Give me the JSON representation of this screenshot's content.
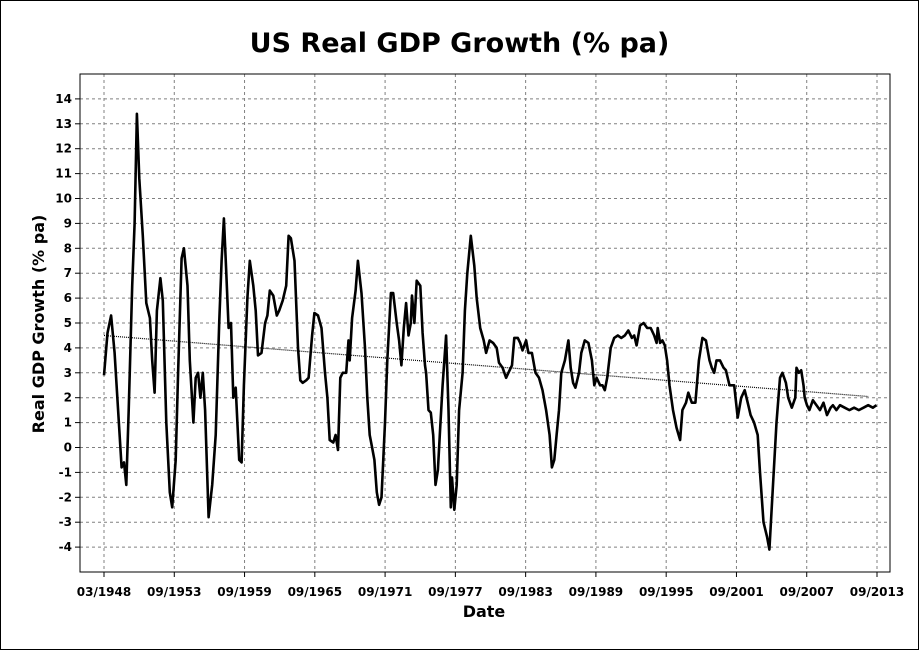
{
  "chart_data": {
    "type": "line",
    "title": "US Real GDP Growth (% pa)",
    "xlabel": "Date",
    "ylabel": "Real GDP Growth (% pa)",
    "ylim": [
      -5,
      15
    ],
    "xlim": [
      1948.0,
      2013.75
    ],
    "grid": true,
    "legend": "none",
    "x_tick_labels": [
      "03/1948",
      "09/1953",
      "09/1959",
      "09/1965",
      "09/1971",
      "09/1977",
      "09/1983",
      "09/1989",
      "09/1995",
      "09/2001",
      "09/2007",
      "09/2013"
    ],
    "y_tick_labels": [
      "-4",
      "-3",
      "-2",
      "-1",
      "0",
      "1",
      "2",
      "3",
      "4",
      "5",
      "6",
      "7",
      "8",
      "9",
      "10",
      "11",
      "12",
      "13",
      "14"
    ],
    "series": [
      {
        "role": "data",
        "color": "#000000",
        "points": [
          [
            1948.0,
            2.9
          ],
          [
            1948.3,
            4.6
          ],
          [
            1948.6,
            5.3
          ],
          [
            1948.9,
            3.8
          ],
          [
            1949.2,
            1.5
          ],
          [
            1949.5,
            -0.8
          ],
          [
            1949.7,
            -0.6
          ],
          [
            1949.9,
            -1.5
          ],
          [
            1950.1,
            1.5
          ],
          [
            1950.4,
            6.5
          ],
          [
            1950.6,
            9.0
          ],
          [
            1950.8,
            13.4
          ],
          [
            1951.0,
            10.8
          ],
          [
            1951.3,
            8.5
          ],
          [
            1951.6,
            5.8
          ],
          [
            1951.9,
            5.2
          ],
          [
            1952.1,
            3.5
          ],
          [
            1952.3,
            2.2
          ],
          [
            1952.5,
            5.5
          ],
          [
            1952.8,
            6.8
          ],
          [
            1953.0,
            5.9
          ],
          [
            1953.3,
            1.0
          ],
          [
            1953.6,
            -1.8
          ],
          [
            1953.8,
            -2.4
          ],
          [
            1954.1,
            -0.5
          ],
          [
            1954.3,
            3.0
          ],
          [
            1954.6,
            7.6
          ],
          [
            1954.8,
            8.0
          ],
          [
            1955.1,
            6.5
          ],
          [
            1955.3,
            3.5
          ],
          [
            1955.6,
            1.0
          ],
          [
            1955.8,
            2.8
          ],
          [
            1956.0,
            3.0
          ],
          [
            1956.2,
            2.0
          ],
          [
            1956.4,
            3.0
          ],
          [
            1956.6,
            1.5
          ],
          [
            1956.9,
            -2.8
          ],
          [
            1957.2,
            -1.5
          ],
          [
            1957.5,
            0.5
          ],
          [
            1957.8,
            5.0
          ],
          [
            1958.0,
            7.5
          ],
          [
            1958.2,
            9.2
          ],
          [
            1958.4,
            7.0
          ],
          [
            1958.6,
            4.8
          ],
          [
            1958.8,
            5.0
          ],
          [
            1959.0,
            2.0
          ],
          [
            1959.2,
            2.4
          ],
          [
            1959.5,
            -0.5
          ],
          [
            1959.7,
            -0.6
          ],
          [
            1959.9,
            2.5
          ],
          [
            1960.2,
            6.0
          ],
          [
            1960.4,
            7.5
          ],
          [
            1960.7,
            6.5
          ],
          [
            1960.9,
            5.5
          ],
          [
            1961.1,
            3.7
          ],
          [
            1961.4,
            3.8
          ],
          [
            1961.7,
            5.0
          ],
          [
            1961.9,
            5.3
          ],
          [
            1962.1,
            6.3
          ],
          [
            1962.4,
            6.1
          ],
          [
            1962.7,
            5.3
          ],
          [
            1962.9,
            5.5
          ],
          [
            1963.2,
            5.9
          ],
          [
            1963.5,
            6.5
          ],
          [
            1963.7,
            8.5
          ],
          [
            1963.9,
            8.4
          ],
          [
            1964.2,
            7.5
          ],
          [
            1964.5,
            4.0
          ],
          [
            1964.7,
            2.7
          ],
          [
            1964.9,
            2.6
          ],
          [
            1965.2,
            2.7
          ],
          [
            1965.4,
            2.8
          ],
          [
            1965.7,
            4.5
          ],
          [
            1965.9,
            5.4
          ],
          [
            1966.2,
            5.3
          ],
          [
            1966.5,
            4.8
          ],
          [
            1966.8,
            3.0
          ],
          [
            1967.0,
            2.0
          ],
          [
            1967.2,
            0.3
          ],
          [
            1967.5,
            0.2
          ],
          [
            1967.7,
            0.5
          ],
          [
            1967.9,
            -0.1
          ],
          [
            1968.1,
            2.8
          ],
          [
            1968.3,
            3.0
          ],
          [
            1968.6,
            3.0
          ],
          [
            1968.8,
            4.3
          ],
          [
            1968.9,
            3.5
          ],
          [
            1969.1,
            5.2
          ],
          [
            1969.4,
            6.3
          ],
          [
            1969.6,
            7.5
          ],
          [
            1969.9,
            6.2
          ],
          [
            1970.2,
            4.0
          ],
          [
            1970.4,
            2.0
          ],
          [
            1970.6,
            0.5
          ],
          [
            1970.8,
            0.0
          ],
          [
            1971.0,
            -0.5
          ],
          [
            1971.2,
            -1.8
          ],
          [
            1971.4,
            -2.3
          ],
          [
            1971.6,
            -2.0
          ],
          [
            1971.9,
            1.0
          ],
          [
            1972.1,
            3.5
          ],
          [
            1972.4,
            6.2
          ],
          [
            1972.6,
            6.2
          ],
          [
            1972.9,
            5.0
          ],
          [
            1973.1,
            4.3
          ],
          [
            1973.3,
            3.3
          ],
          [
            1973.5,
            4.8
          ],
          [
            1973.7,
            5.8
          ],
          [
            1973.9,
            4.5
          ],
          [
            1974.1,
            5.0
          ],
          [
            1974.2,
            6.1
          ],
          [
            1974.4,
            5.0
          ],
          [
            1974.6,
            6.7
          ],
          [
            1974.9,
            6.5
          ],
          [
            1975.1,
            4.6
          ],
          [
            1975.3,
            3.3
          ],
          [
            1975.4,
            3.0
          ],
          [
            1975.6,
            1.5
          ],
          [
            1975.8,
            1.4
          ],
          [
            1976.0,
            0.5
          ],
          [
            1976.2,
            -1.5
          ],
          [
            1976.4,
            -0.9
          ],
          [
            1976.6,
            0.8
          ],
          [
            1976.8,
            2.5
          ],
          [
            1977.1,
            4.5
          ],
          [
            1977.3,
            1.5
          ],
          [
            1977.5,
            -2.4
          ],
          [
            1977.6,
            -1.2
          ],
          [
            1977.8,
            -2.5
          ],
          [
            1978.0,
            -1.5
          ],
          [
            1978.2,
            1.5
          ],
          [
            1978.5,
            3.0
          ],
          [
            1978.7,
            5.5
          ],
          [
            1978.9,
            7.0
          ],
          [
            1979.2,
            8.5
          ],
          [
            1979.5,
            7.3
          ],
          [
            1979.7,
            6.0
          ],
          [
            1980.0,
            4.8
          ],
          [
            1980.3,
            4.3
          ],
          [
            1980.5,
            3.8
          ],
          [
            1980.8,
            4.3
          ],
          [
            1981.1,
            4.2
          ],
          [
            1981.4,
            4.0
          ],
          [
            1981.6,
            3.4
          ],
          [
            1981.9,
            3.2
          ],
          [
            1982.2,
            2.8
          ],
          [
            1982.4,
            3.0
          ],
          [
            1982.7,
            3.3
          ],
          [
            1982.9,
            4.4
          ],
          [
            1983.2,
            4.4
          ],
          [
            1983.4,
            4.2
          ],
          [
            1983.6,
            3.9
          ],
          [
            1983.9,
            4.3
          ],
          [
            1984.1,
            3.8
          ],
          [
            1984.4,
            3.8
          ],
          [
            1984.7,
            3.0
          ],
          [
            1985.0,
            2.8
          ],
          [
            1985.3,
            2.3
          ],
          [
            1985.6,
            1.5
          ],
          [
            1985.9,
            0.5
          ],
          [
            1986.1,
            -0.8
          ],
          [
            1986.3,
            -0.5
          ],
          [
            1986.5,
            0.5
          ],
          [
            1986.7,
            1.5
          ],
          [
            1986.9,
            3.0
          ],
          [
            1987.2,
            3.5
          ],
          [
            1987.5,
            4.3
          ],
          [
            1987.7,
            3.2
          ],
          [
            1987.9,
            2.6
          ],
          [
            1988.1,
            2.4
          ],
          [
            1988.4,
            3.0
          ],
          [
            1988.6,
            3.8
          ],
          [
            1988.9,
            4.3
          ],
          [
            1989.2,
            4.2
          ],
          [
            1989.5,
            3.5
          ],
          [
            1989.7,
            2.5
          ],
          [
            1989.9,
            2.8
          ],
          [
            1990.2,
            2.5
          ],
          [
            1990.4,
            2.5
          ],
          [
            1990.6,
            2.3
          ],
          [
            1990.8,
            2.8
          ],
          [
            1991.1,
            4.0
          ],
          [
            1991.4,
            4.4
          ],
          [
            1991.7,
            4.5
          ],
          [
            1992.0,
            4.4
          ],
          [
            1992.3,
            4.5
          ],
          [
            1992.6,
            4.7
          ],
          [
            1992.9,
            4.4
          ],
          [
            1993.1,
            4.5
          ],
          [
            1993.3,
            4.1
          ],
          [
            1993.6,
            4.9
          ],
          [
            1993.9,
            5.0
          ],
          [
            1994.2,
            4.8
          ],
          [
            1994.5,
            4.8
          ],
          [
            1994.8,
            4.5
          ],
          [
            1995.0,
            4.2
          ],
          [
            1995.1,
            4.8
          ],
          [
            1995.3,
            4.2
          ],
          [
            1995.5,
            4.3
          ],
          [
            1995.7,
            4.1
          ],
          [
            1995.9,
            3.5
          ],
          [
            1996.1,
            2.5
          ],
          [
            1996.4,
            1.5
          ],
          [
            1996.7,
            0.8
          ],
          [
            1997.0,
            0.3
          ],
          [
            1997.2,
            1.5
          ],
          [
            1997.5,
            1.8
          ],
          [
            1997.7,
            2.2
          ],
          [
            1998.0,
            1.8
          ],
          [
            1998.3,
            1.8
          ],
          [
            1998.6,
            3.5
          ],
          [
            1998.9,
            4.4
          ],
          [
            1999.2,
            4.3
          ],
          [
            1999.5,
            3.5
          ],
          [
            1999.7,
            3.2
          ],
          [
            1999.9,
            3.0
          ],
          [
            2000.1,
            3.5
          ],
          [
            2000.4,
            3.5
          ],
          [
            2000.7,
            3.2
          ],
          [
            2000.9,
            3.1
          ],
          [
            2001.2,
            2.5
          ],
          [
            2001.4,
            2.5
          ],
          [
            2001.6,
            2.5
          ],
          [
            2001.9,
            1.2
          ],
          [
            2002.2,
            2.0
          ],
          [
            2002.5,
            2.3
          ],
          [
            2002.8,
            1.7
          ],
          [
            2003.0,
            1.3
          ],
          [
            2003.3,
            1.0
          ],
          [
            2003.6,
            0.5
          ],
          [
            2003.8,
            -1.0
          ],
          [
            2004.1,
            -3.0
          ],
          [
            2004.4,
            -3.6
          ],
          [
            2004.6,
            -4.1
          ],
          [
            2004.9,
            -1.5
          ],
          [
            2005.2,
            1.0
          ],
          [
            2005.5,
            2.8
          ],
          [
            2005.7,
            3.0
          ],
          [
            2006.0,
            2.6
          ],
          [
            2006.2,
            2.0
          ],
          [
            2006.5,
            1.6
          ],
          [
            2006.8,
            2.0
          ],
          [
            2006.9,
            3.2
          ],
          [
            2007.1,
            3.0
          ],
          [
            2007.3,
            3.1
          ],
          [
            2007.5,
            2.5
          ],
          [
            2007.6,
            2.0
          ],
          [
            2007.8,
            1.7
          ],
          [
            2008.0,
            1.5
          ],
          [
            2008.3,
            1.9
          ],
          [
            2008.6,
            1.7
          ],
          [
            2008.9,
            1.5
          ],
          [
            2009.2,
            1.8
          ],
          [
            2009.5,
            1.3
          ],
          [
            2009.8,
            1.6
          ],
          [
            2010.0,
            1.7
          ],
          [
            2010.3,
            1.5
          ],
          [
            2010.6,
            1.7
          ],
          [
            2011.0,
            1.6
          ],
          [
            2011.4,
            1.5
          ],
          [
            2011.8,
            1.6
          ],
          [
            2012.2,
            1.5
          ],
          [
            2012.6,
            1.6
          ],
          [
            2013.0,
            1.7
          ],
          [
            2013.4,
            1.6
          ],
          [
            2013.7,
            1.7
          ]
        ]
      },
      {
        "role": "trend",
        "color": "#000000",
        "points": [
          [
            1948.0,
            4.5
          ],
          [
            2013.0,
            2.05
          ]
        ]
      }
    ]
  }
}
